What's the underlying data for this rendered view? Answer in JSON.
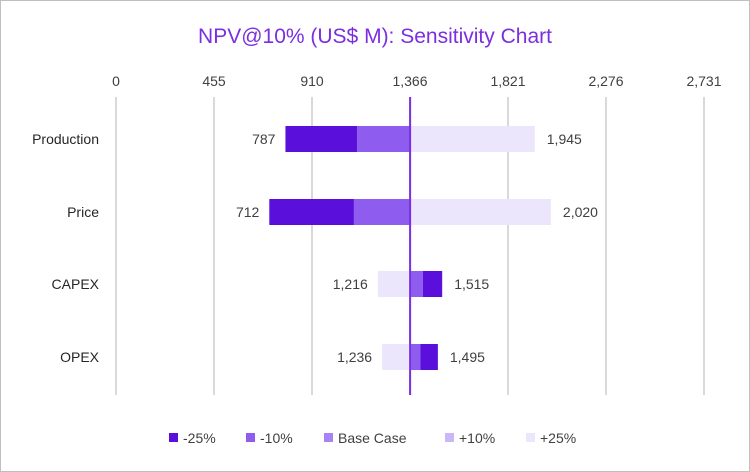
{
  "chart_data": {
    "type": "bar",
    "orientation": "horizontal",
    "subtype": "tornado",
    "title": "NPV@10% (US$ M): Sensitivity Chart",
    "x_ticks": [
      "0",
      "455",
      "910",
      "1,366",
      "1,821",
      "2,276",
      "2,731"
    ],
    "xlim": [
      0,
      2731
    ],
    "grid": true,
    "legend_position": "bottom",
    "base_case": 1366,
    "categories": [
      "Production",
      "Price",
      "CAPEX",
      "OPEX"
    ],
    "segments": [
      {
        "category": "Production",
        "-25%": [
          787,
          1120
        ],
        "-10%": [
          1120,
          1366
        ],
        "+10%": null,
        "+25%": [
          1366,
          1945
        ]
      },
      {
        "category": "Price",
        "-25%": [
          712,
          1105
        ],
        "-10%": [
          1105,
          1366
        ],
        "+10%": null,
        "+25%": [
          1366,
          2020
        ]
      },
      {
        "category": "CAPEX",
        "-25%": [
          1425,
          1515
        ],
        "-10%": [
          1366,
          1425
        ],
        "+10%": null,
        "+25%": [
          1216,
          1366
        ]
      },
      {
        "category": "OPEX",
        "-25%": [
          1414,
          1495
        ],
        "-10%": [
          1366,
          1414
        ],
        "+10%": null,
        "+25%": [
          1236,
          1366
        ]
      }
    ],
    "left_labels": [
      "787",
      "712",
      "1,216",
      "1,236"
    ],
    "right_labels": [
      "1,945",
      "2,020",
      "1,515",
      "1,495"
    ],
    "series": [
      {
        "name": "-25%",
        "color": "#5A0FDB"
      },
      {
        "name": "-10%",
        "color": "#8F5CF0"
      },
      {
        "name": "Base Case",
        "color": "#A983F5"
      },
      {
        "name": "+10%",
        "color": "#CBB6F8"
      },
      {
        "name": "+25%",
        "color": "#ECE6FC"
      }
    ],
    "base_line_color": "#7B2FE0",
    "grid_color": "#d9d9d9"
  }
}
